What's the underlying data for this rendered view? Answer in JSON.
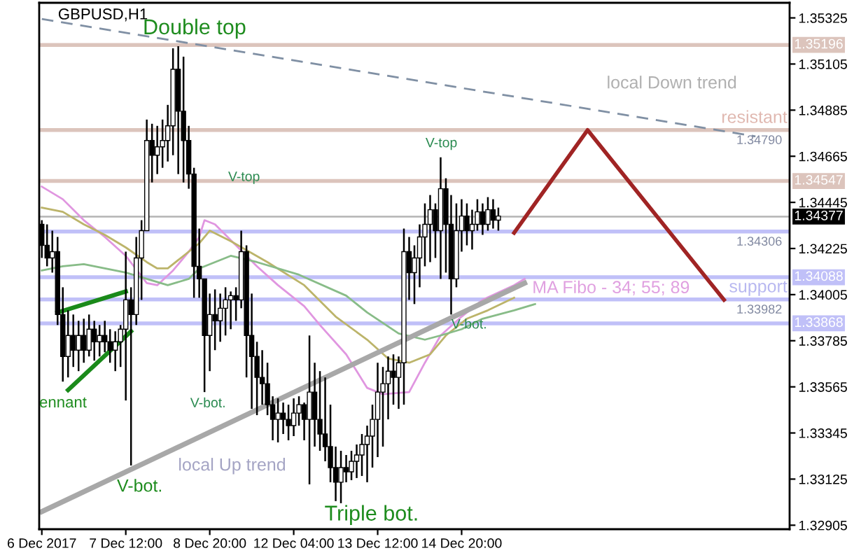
{
  "chart_data": {
    "type": "candlestick",
    "title": "GBPUSD,H1",
    "categories": [
      "6 Dec 2017",
      null,
      null,
      null,
      null,
      null,
      null,
      null,
      null,
      null,
      null,
      null,
      null,
      null,
      null,
      null,
      "7 Dec 12:00",
      null,
      null,
      null,
      null,
      null,
      null,
      null,
      null,
      null,
      null,
      null,
      null,
      null,
      null,
      null,
      "8 Dec 20:00",
      null,
      null,
      null,
      null,
      null,
      null,
      null,
      null,
      null,
      null,
      null,
      null,
      null,
      null,
      null,
      "12 Dec 04:00",
      null,
      null,
      null,
      null,
      null,
      null,
      null,
      null,
      null,
      null,
      null,
      null,
      null,
      null,
      null,
      "13 Dec 12:00",
      null,
      null,
      null,
      null,
      null,
      null,
      null,
      null,
      null,
      null,
      null,
      null,
      null,
      null,
      null,
      "14 Dec 20:00",
      null,
      null,
      null,
      null,
      null,
      null,
      null,
      null,
      null,
      null,
      null,
      null,
      null,
      null,
      null,
      null,
      null,
      null,
      null,
      null,
      null,
      null,
      null,
      null,
      null,
      null,
      null,
      null,
      null,
      null,
      null,
      null,
      null,
      null,
      null,
      null,
      null,
      null,
      null,
      null,
      null,
      null,
      null,
      null,
      null,
      null,
      null,
      null,
      null,
      null,
      null,
      null,
      null,
      null,
      null,
      null,
      null,
      null,
      null,
      null,
      null,
      null
    ],
    "ohlc": [
      [
        1.3434,
        1.3436,
        1.3418,
        1.3424
      ],
      [
        1.3424,
        1.3434,
        1.3414,
        1.3418
      ],
      [
        1.3418,
        1.3431,
        1.3411,
        1.3421
      ],
      [
        1.3421,
        1.3428,
        1.3386,
        1.3391
      ],
      [
        1.3391,
        1.3404,
        1.3359,
        1.3371
      ],
      [
        1.3371,
        1.3393,
        1.3361,
        1.3381
      ],
      [
        1.3381,
        1.3391,
        1.3366,
        1.3374
      ],
      [
        1.3374,
        1.3388,
        1.3364,
        1.3381
      ],
      [
        1.3381,
        1.3389,
        1.3368,
        1.3374
      ],
      [
        1.3374,
        1.3391,
        1.3371,
        1.3384
      ],
      [
        1.3384,
        1.3388,
        1.3369,
        1.3378
      ],
      [
        1.3378,
        1.3386,
        1.3371,
        1.3381
      ],
      [
        1.3381,
        1.3388,
        1.3373,
        1.3378
      ],
      [
        1.3378,
        1.3384,
        1.3368,
        1.3374
      ],
      [
        1.3374,
        1.3383,
        1.3364,
        1.3378
      ],
      [
        1.3378,
        1.3386,
        1.3366,
        1.3384
      ],
      [
        1.3384,
        1.3421,
        1.335,
        1.3398
      ],
      [
        1.3398,
        1.3404,
        1.3319,
        1.3391
      ],
      [
        1.3391,
        1.3428,
        1.3386,
        1.3418
      ],
      [
        1.3418,
        1.3436,
        1.3398,
        1.3431
      ],
      [
        1.3431,
        1.3484,
        1.3431,
        1.3474
      ],
      [
        1.3474,
        1.3482,
        1.3454,
        1.3467
      ],
      [
        1.3467,
        1.3481,
        1.3458,
        1.3471
      ],
      [
        1.3471,
        1.3484,
        1.3461,
        1.3474
      ],
      [
        1.3474,
        1.3491,
        1.3464,
        1.3481
      ],
      [
        1.3481,
        1.3518,
        1.3467,
        1.3508
      ],
      [
        1.3508,
        1.3519,
        1.3458,
        1.3488
      ],
      [
        1.3488,
        1.3514,
        1.3454,
        1.3474
      ],
      [
        1.3474,
        1.3481,
        1.3451,
        1.3458
      ],
      [
        1.3458,
        1.3461,
        1.3399,
        1.3414
      ],
      [
        1.3414,
        1.3432,
        1.3399,
        1.3408
      ],
      [
        1.3408,
        1.3408,
        1.3354,
        1.3381
      ],
      [
        1.3381,
        1.3401,
        1.3364,
        1.3391
      ],
      [
        1.3391,
        1.3403,
        1.3374,
        1.3388
      ],
      [
        1.3388,
        1.3401,
        1.3378,
        1.3394
      ],
      [
        1.3394,
        1.3404,
        1.3381,
        1.3398
      ],
      [
        1.3398,
        1.3402,
        1.3384,
        1.34
      ],
      [
        1.34,
        1.3404,
        1.3388,
        1.3398
      ],
      [
        1.3398,
        1.3431,
        1.3394,
        1.3421
      ],
      [
        1.3421,
        1.3424,
        1.3361,
        1.3381
      ],
      [
        1.3381,
        1.3401,
        1.3346,
        1.3371
      ],
      [
        1.3371,
        1.3378,
        1.3343,
        1.3361
      ],
      [
        1.3361,
        1.3374,
        1.3348,
        1.3358
      ],
      [
        1.3358,
        1.3368,
        1.3343,
        1.3348
      ],
      [
        1.3348,
        1.3352,
        1.3331,
        1.3341
      ],
      [
        1.3341,
        1.3351,
        1.333,
        1.3344
      ],
      [
        1.3344,
        1.3349,
        1.3334,
        1.3341
      ],
      [
        1.3341,
        1.3348,
        1.3331,
        1.3338
      ],
      [
        1.3338,
        1.3351,
        1.3333,
        1.3344
      ],
      [
        1.3344,
        1.3352,
        1.3338,
        1.3348
      ],
      [
        1.3348,
        1.3349,
        1.3331,
        1.3341
      ],
      [
        1.3341,
        1.3381,
        1.331,
        1.3354
      ],
      [
        1.3354,
        1.3368,
        1.3328,
        1.3341
      ],
      [
        1.3341,
        1.3364,
        1.3326,
        1.3334
      ],
      [
        1.3334,
        1.3361,
        1.3321,
        1.3328
      ],
      [
        1.3328,
        1.3348,
        1.3311,
        1.3318
      ],
      [
        1.3318,
        1.3328,
        1.3302,
        1.3311
      ],
      [
        1.3311,
        1.3326,
        1.3301,
        1.3318
      ],
      [
        1.3318,
        1.3324,
        1.3311,
        1.3316
      ],
      [
        1.3316,
        1.3326,
        1.3312,
        1.3321
      ],
      [
        1.3321,
        1.3329,
        1.3313,
        1.3324
      ],
      [
        1.3324,
        1.3334,
        1.3314,
        1.3329
      ],
      [
        1.3329,
        1.3338,
        1.3311,
        1.3333
      ],
      [
        1.3333,
        1.3348,
        1.3318,
        1.3341
      ],
      [
        1.3341,
        1.3368,
        1.3323,
        1.3354
      ],
      [
        1.3354,
        1.3366,
        1.3328,
        1.3358
      ],
      [
        1.3358,
        1.3371,
        1.3341,
        1.3364
      ],
      [
        1.3364,
        1.3372,
        1.3348,
        1.3361
      ],
      [
        1.3361,
        1.3371,
        1.3346,
        1.3368
      ],
      [
        1.3368,
        1.3432,
        1.3348,
        1.3421
      ],
      [
        1.3421,
        1.3428,
        1.3398,
        1.3411
      ],
      [
        1.3411,
        1.3424,
        1.3396,
        1.3418
      ],
      [
        1.3418,
        1.3434,
        1.3404,
        1.3428
      ],
      [
        1.3428,
        1.3444,
        1.3414,
        1.3434
      ],
      [
        1.3434,
        1.3448,
        1.3416,
        1.3441
      ],
      [
        1.3441,
        1.3444,
        1.3418,
        1.3431
      ],
      [
        1.3431,
        1.3466,
        1.3408,
        1.3451
      ],
      [
        1.3451,
        1.3456,
        1.3411,
        1.3434
      ],
      [
        1.3434,
        1.3448,
        1.3391,
        1.3408
      ],
      [
        1.3408,
        1.3444,
        1.3404,
        1.3431
      ],
      [
        1.3431,
        1.3446,
        1.3421,
        1.3438
      ],
      [
        1.3438,
        1.3444,
        1.3424,
        1.3431
      ],
      [
        1.3431,
        1.3441,
        1.3422,
        1.3434
      ],
      [
        1.3434,
        1.3446,
        1.3431,
        1.344
      ],
      [
        1.344,
        1.3444,
        1.3429,
        1.3434
      ],
      [
        1.3434,
        1.3447,
        1.3431,
        1.3441
      ],
      [
        1.3441,
        1.3446,
        1.3432,
        1.3436
      ],
      [
        1.3436,
        1.3442,
        1.3431,
        1.3438
      ],
      null,
      null,
      null,
      null,
      null,
      null,
      null,
      null,
      null,
      null,
      null,
      null,
      null,
      null,
      null,
      null,
      null,
      null,
      null,
      null,
      null,
      null,
      null,
      null,
      null,
      null,
      null,
      null,
      null,
      null,
      null,
      null,
      null,
      null,
      null,
      null,
      null,
      null,
      null,
      null,
      null,
      null,
      null,
      null,
      null,
      null,
      null,
      null,
      null,
      null,
      null,
      null,
      null,
      null,
      null
    ],
    "series": [
      {
        "type": "line",
        "color": "#e096e0",
        "values": [
          1.3452,
          null,
          null,
          null,
          1.3446,
          null,
          null,
          null,
          1.3436,
          null,
          null,
          null,
          1.3428,
          null,
          null,
          null,
          1.3419,
          null,
          null,
          null,
          1.3406,
          null,
          1.3405,
          null,
          null,
          1.3412,
          null,
          null,
          1.3421,
          null,
          1.3428,
          1.3436,
          null,
          1.3434,
          null,
          null,
          null,
          1.3424,
          null,
          null,
          null,
          1.3414,
          null,
          null,
          null,
          1.3405,
          null,
          null,
          null,
          null,
          1.3395,
          null,
          null,
          1.3386,
          null,
          null,
          null,
          null,
          1.3372,
          null,
          null,
          null,
          1.3356,
          null,
          null,
          1.3353,
          null,
          null,
          null,
          null,
          1.3354,
          null,
          null,
          1.3368,
          null,
          null,
          1.3381,
          null,
          null,
          null,
          1.339,
          null,
          null,
          null,
          1.3398,
          null,
          null,
          null,
          null,
          null,
          1.3405,
          null,
          1.3408,
          null,
          null,
          null,
          null,
          null,
          null,
          null,
          null,
          null,
          null,
          null,
          null,
          null,
          null,
          null,
          null,
          null,
          null,
          null,
          null,
          null,
          null,
          null,
          null,
          null,
          null,
          null,
          null,
          null,
          null,
          null,
          null,
          null,
          null,
          null,
          null,
          null,
          null,
          null,
          null,
          null,
          null,
          null,
          null,
          null,
          null,
          null,
          null,
          null,
          null
        ]
      },
      {
        "type": "line",
        "color": "#bcb46a",
        "values": [
          1.3442,
          null,
          null,
          null,
          1.344,
          null,
          null,
          null,
          1.3434,
          null,
          null,
          null,
          1.3429,
          null,
          null,
          null,
          1.3423,
          null,
          null,
          null,
          1.3416,
          null,
          1.3413,
          null,
          1.3413,
          null,
          null,
          null,
          1.3421,
          null,
          1.3425,
          null,
          1.3431,
          null,
          null,
          null,
          1.3426,
          null,
          null,
          null,
          null,
          null,
          null,
          1.3416,
          null,
          null,
          null,
          null,
          null,
          null,
          1.3405,
          null,
          null,
          null,
          null,
          null,
          1.339,
          null,
          null,
          null,
          null,
          null,
          1.3379,
          null,
          null,
          null,
          1.337,
          null,
          null,
          null,
          1.3368,
          null,
          null,
          null,
          1.3372,
          null,
          null,
          1.3381,
          null,
          null,
          null,
          1.3389,
          null,
          null,
          null,
          1.3393,
          null,
          null,
          null,
          null,
          1.3399,
          null,
          null,
          null,
          null,
          null,
          null,
          null,
          null,
          null,
          null,
          null,
          null,
          null,
          null,
          null,
          null,
          null,
          null,
          null,
          null,
          null,
          null,
          null,
          null,
          null,
          null,
          null,
          null,
          null,
          null,
          null,
          null,
          null,
          null,
          null,
          null,
          null,
          null,
          null,
          null,
          null,
          null,
          null,
          null,
          null,
          null,
          null,
          null,
          null,
          null,
          null,
          null
        ]
      },
      {
        "type": "line",
        "color": "#88bc88",
        "values": [
          1.3412,
          null,
          null,
          null,
          1.3414,
          null,
          null,
          null,
          1.3415,
          null,
          null,
          null,
          1.3413,
          null,
          null,
          null,
          1.3411,
          null,
          null,
          null,
          1.3408,
          null,
          null,
          null,
          1.3405,
          null,
          null,
          null,
          1.3408,
          null,
          1.3413,
          null,
          null,
          null,
          null,
          null,
          1.3419,
          null,
          null,
          null,
          null,
          1.3416,
          null,
          null,
          null,
          null,
          null,
          null,
          null,
          1.341,
          null,
          null,
          null,
          null,
          null,
          null,
          null,
          null,
          1.34,
          null,
          null,
          null,
          1.3392,
          null,
          null,
          null,
          null,
          null,
          1.3382,
          null,
          null,
          null,
          null,
          1.3379,
          null,
          null,
          1.3381,
          null,
          null,
          null,
          1.3384,
          null,
          null,
          null,
          1.3389,
          null,
          null,
          null,
          null,
          null,
          1.3393,
          null,
          null,
          null,
          1.3396,
          null,
          null,
          null,
          null,
          null,
          null,
          null,
          null,
          null,
          null,
          null,
          null,
          null,
          null,
          null,
          null,
          null,
          null,
          null,
          null,
          null,
          null,
          null,
          null,
          null,
          null,
          null,
          null,
          null,
          null,
          null,
          null,
          null,
          null,
          null,
          null,
          null,
          null,
          null,
          null,
          null,
          null,
          null,
          null,
          null,
          null,
          null,
          null
        ]
      },
      {
        "type": "line",
        "color": "#8090a4",
        "line_style": "dashed",
        "values": [
          1.3532,
          null,
          null,
          null,
          null,
          null,
          null,
          null,
          null,
          null,
          null,
          null,
          null,
          null,
          null,
          null,
          null,
          null,
          null,
          null,
          null,
          null,
          null,
          null,
          null,
          null,
          null,
          null,
          null,
          null,
          null,
          null,
          null,
          null,
          null,
          null,
          null,
          null,
          null,
          null,
          null,
          null,
          null,
          null,
          null,
          null,
          null,
          null,
          null,
          null,
          null,
          null,
          null,
          null,
          null,
          null,
          null,
          null,
          null,
          null,
          null,
          null,
          null,
          null,
          null,
          null,
          null,
          null,
          null,
          null,
          null,
          null,
          null,
          null,
          null,
          null,
          null,
          null,
          null,
          null,
          null,
          null,
          null,
          null,
          null,
          null,
          null,
          null,
          null,
          null,
          null,
          null,
          null,
          null,
          null,
          null,
          null,
          null,
          null,
          null,
          null,
          null,
          null,
          null,
          null,
          null,
          null,
          null,
          null,
          null,
          null,
          null,
          null,
          null,
          null,
          null,
          null,
          null,
          null,
          null,
          null,
          null,
          null,
          null,
          null,
          null,
          null,
          null,
          null,
          null,
          null,
          null,
          null,
          null,
          null,
          null,
          1.3476,
          null,
          null,
          null,
          null,
          null,
          null
        ]
      },
      {
        "type": "line",
        "color": "#a8a8a8",
        "values": [
          1.3297,
          null,
          null,
          null,
          null,
          null,
          null,
          null,
          null,
          null,
          null,
          null,
          null,
          null,
          null,
          null,
          null,
          null,
          null,
          null,
          null,
          null,
          null,
          null,
          null,
          null,
          null,
          null,
          null,
          null,
          null,
          null,
          null,
          null,
          null,
          null,
          null,
          null,
          null,
          null,
          null,
          null,
          null,
          null,
          null,
          null,
          null,
          null,
          null,
          null,
          null,
          null,
          null,
          null,
          null,
          null,
          null,
          null,
          null,
          null,
          null,
          null,
          null,
          null,
          null,
          null,
          null,
          null,
          null,
          null,
          null,
          null,
          null,
          null,
          null,
          null,
          null,
          null,
          null,
          null,
          null,
          null,
          null,
          null,
          null,
          null,
          null,
          null,
          null,
          null,
          null,
          null,
          1.3406,
          null,
          null,
          null,
          null,
          null,
          null,
          null,
          null,
          null,
          null,
          null,
          null,
          null,
          null,
          null,
          null,
          null,
          null,
          null,
          null,
          null,
          null,
          null,
          null,
          null,
          null,
          null,
          null,
          null,
          null,
          null,
          null,
          null,
          null,
          null,
          null,
          null,
          null,
          null,
          null,
          null,
          null,
          null,
          null,
          null,
          null,
          null,
          null,
          null,
          null
        ]
      },
      {
        "type": "line",
        "color": "#1a8a1a",
        "values": [
          null,
          null,
          null,
          1.3392,
          null,
          null,
          null,
          null,
          null,
          null,
          null,
          null,
          null,
          null,
          null,
          null,
          1.3402,
          null,
          null,
          null,
          null,
          null,
          null,
          null,
          null,
          null,
          null,
          null,
          null,
          null,
          null,
          null,
          null,
          null,
          null,
          null,
          null,
          null,
          null,
          null,
          null,
          null,
          null,
          null,
          null,
          null,
          null,
          null,
          null,
          null,
          null,
          null,
          null,
          null,
          null,
          null,
          null,
          null,
          null,
          null,
          null,
          null,
          null,
          null,
          null,
          null,
          null,
          null,
          null,
          null,
          null,
          null,
          null,
          null,
          null,
          null,
          null,
          null,
          null,
          null,
          null,
          null,
          null,
          null,
          null,
          null,
          null,
          null,
          null,
          null,
          null,
          null,
          null,
          null,
          null,
          null,
          null,
          null,
          null,
          null,
          null,
          null,
          null,
          null,
          null,
          null,
          null,
          null,
          null,
          null,
          null,
          null,
          null,
          null,
          null,
          null,
          null,
          null,
          null,
          null,
          null,
          null,
          null,
          null,
          null,
          null,
          null,
          null,
          null,
          null,
          null,
          null,
          null,
          null,
          null,
          null,
          null,
          null,
          null,
          null,
          null,
          null,
          null
        ]
      },
      {
        "type": "line",
        "color": "#1a8a1a",
        "values": [
          null,
          null,
          null,
          null,
          null,
          1.3355,
          null,
          null,
          null,
          null,
          null,
          null,
          null,
          null,
          null,
          null,
          null,
          1.3383,
          null,
          null,
          null,
          null,
          null,
          null,
          null,
          null,
          null,
          null,
          null,
          null,
          null,
          null,
          null,
          null,
          null,
          null,
          null,
          null,
          null,
          null,
          null,
          null,
          null,
          null,
          null,
          null,
          null,
          null,
          null,
          null,
          null,
          null,
          null,
          null,
          null,
          null,
          null,
          null,
          null,
          null,
          null,
          null,
          null,
          null,
          null,
          null,
          null,
          null,
          null,
          null,
          null,
          null,
          null,
          null,
          null,
          null,
          null,
          null,
          null,
          null,
          null,
          null,
          null,
          null,
          null,
          null,
          null,
          null,
          null,
          null,
          null,
          null,
          null,
          null,
          null,
          null,
          null,
          null,
          null,
          null,
          null,
          null,
          null,
          null,
          null,
          null,
          null,
          null,
          null,
          null,
          null,
          null,
          null,
          null,
          null,
          null,
          null,
          null,
          null,
          null,
          null,
          null,
          null,
          null,
          null,
          null,
          null,
          null,
          null,
          null,
          null,
          null,
          null,
          null,
          null,
          null,
          null,
          null,
          null,
          null,
          null,
          null,
          null
        ]
      },
      {
        "type": "line",
        "color": "#a02424",
        "values": [
          null,
          null,
          null,
          null,
          null,
          null,
          null,
          null,
          null,
          null,
          null,
          null,
          null,
          null,
          null,
          null,
          null,
          null,
          null,
          null,
          null,
          null,
          null,
          null,
          null,
          null,
          null,
          null,
          null,
          null,
          null,
          null,
          null,
          null,
          null,
          null,
          null,
          null,
          null,
          null,
          null,
          null,
          null,
          null,
          null,
          null,
          null,
          null,
          null,
          null,
          null,
          null,
          null,
          null,
          null,
          null,
          null,
          null,
          null,
          null,
          null,
          null,
          null,
          null,
          null,
          null,
          null,
          null,
          null,
          null,
          null,
          null,
          null,
          null,
          null,
          null,
          null,
          null,
          null,
          null,
          null,
          null,
          null,
          null,
          null,
          null,
          null,
          null,
          null,
          null,
          1.343,
          null,
          null,
          null,
          null,
          null,
          null,
          null,
          null,
          null,
          null,
          null,
          null,
          null,
          1.3479,
          null,
          null,
          null,
          null,
          null,
          null,
          null,
          null,
          null,
          null,
          null,
          null,
          null,
          null,
          null,
          null,
          null,
          null,
          null,
          null,
          null,
          null,
          null,
          null,
          null,
          1.3398,
          null,
          null,
          null,
          null,
          null,
          null,
          null,
          null,
          null,
          null,
          null,
          null
        ]
      }
    ],
    "ref_lines": [
      {
        "axis": "y",
        "value": 1.35196,
        "label": "1.35196",
        "color": "#dcc4bc"
      },
      {
        "axis": "y",
        "value": 1.3479,
        "label": "1.34790",
        "color": "#dcc4bc"
      },
      {
        "axis": "y",
        "value": 1.34547,
        "label": "1.34547",
        "color": "#dcc4bc"
      },
      {
        "axis": "y",
        "value": 1.34377,
        "label": "1.34377",
        "color": "#b4b4b4"
      },
      {
        "axis": "y",
        "value": 1.34306,
        "label": "1.34306",
        "color": "#c0c0f8"
      },
      {
        "axis": "y",
        "value": 1.34088,
        "label": "1.34088",
        "color": "#c0c0f8"
      },
      {
        "axis": "y",
        "value": 1.33982,
        "label": "1.33982",
        "color": "#c0c0f8"
      },
      {
        "axis": "y",
        "value": 1.33868,
        "label": "1.33868",
        "color": "#c0c0f8"
      }
    ],
    "annotations": [
      {
        "text": "Double top",
        "y": 1.3519
      },
      "V-top",
      {
        "text": "V-bot.",
        "y": 1.3354
      },
      "V-bot.",
      "ennant",
      "local Up trend",
      "Triple bot.",
      {
        "text": "V-top",
        "y": 1.3466
      },
      "V-bot.",
      "local Down trend",
      {
        "text": "resistant",
        "y": 1.3479
      },
      "MA Fibo - 34; 55; 89",
      {
        "text": "support",
        "y": 1.33982
      }
    ],
    "ylim": [
      1.32886,
      1.35397
    ],
    "yticks": [
      1.35325,
      1.35105,
      1.34885,
      1.34665,
      1.34445,
      1.34225,
      1.34005,
      1.33785,
      1.33565,
      1.33345,
      1.33125,
      1.32905
    ],
    "grid": false,
    "legend": false
  }
}
